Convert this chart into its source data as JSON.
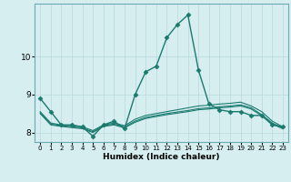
{
  "title": "",
  "xlabel": "Humidex (Indice chaleur)",
  "bg_color": "#d6eef0",
  "grid_color": "#b8d8dc",
  "line_color": "#1a7a6e",
  "xlim": [
    -0.5,
    23.5
  ],
  "ylim": [
    7.75,
    11.4
  ],
  "yticks": [
    8,
    9,
    10
  ],
  "xticks": [
    0,
    1,
    2,
    3,
    4,
    5,
    6,
    7,
    8,
    9,
    10,
    11,
    12,
    13,
    14,
    15,
    16,
    17,
    18,
    19,
    20,
    21,
    22,
    23
  ],
  "series": [
    {
      "x": [
        0,
        1,
        2,
        3,
        4,
        5,
        6,
        7,
        8,
        9,
        10,
        11,
        12,
        13,
        14,
        15,
        16,
        17,
        18,
        19,
        20,
        21,
        22,
        23
      ],
      "y": [
        8.9,
        8.55,
        8.2,
        8.2,
        8.15,
        7.9,
        8.2,
        8.3,
        8.1,
        9.0,
        9.6,
        9.75,
        10.5,
        10.85,
        11.1,
        9.65,
        8.75,
        8.6,
        8.55,
        8.55,
        8.45,
        8.45,
        8.2,
        8.15
      ],
      "marker": "D",
      "markersize": 2.5,
      "linewidth": 1.0
    },
    {
      "x": [
        0,
        1,
        2,
        3,
        4,
        5,
        6,
        7,
        8,
        9,
        10,
        11,
        12,
        13,
        14,
        15,
        16,
        17,
        18,
        19,
        20,
        21,
        22,
        23
      ],
      "y": [
        8.55,
        8.25,
        8.2,
        8.18,
        8.15,
        8.05,
        8.2,
        8.25,
        8.18,
        8.35,
        8.45,
        8.5,
        8.55,
        8.6,
        8.65,
        8.7,
        8.72,
        8.75,
        8.77,
        8.8,
        8.7,
        8.55,
        8.3,
        8.15
      ],
      "marker": null,
      "markersize": 0,
      "linewidth": 0.8
    },
    {
      "x": [
        0,
        1,
        2,
        3,
        4,
        5,
        6,
        7,
        8,
        9,
        10,
        11,
        12,
        13,
        14,
        15,
        16,
        17,
        18,
        19,
        20,
        21,
        22,
        23
      ],
      "y": [
        8.52,
        8.22,
        8.18,
        8.15,
        8.12,
        8.02,
        8.18,
        8.22,
        8.15,
        8.3,
        8.4,
        8.45,
        8.5,
        8.54,
        8.58,
        8.63,
        8.65,
        8.68,
        8.7,
        8.73,
        8.65,
        8.47,
        8.25,
        8.12
      ],
      "marker": null,
      "markersize": 0,
      "linewidth": 0.8
    },
    {
      "x": [
        0,
        1,
        2,
        3,
        4,
        5,
        6,
        7,
        8,
        9,
        10,
        11,
        12,
        13,
        14,
        15,
        16,
        17,
        18,
        19,
        20,
        21,
        22,
        23
      ],
      "y": [
        8.5,
        8.2,
        8.16,
        8.13,
        8.1,
        8.0,
        8.16,
        8.2,
        8.12,
        8.27,
        8.37,
        8.42,
        8.47,
        8.51,
        8.55,
        8.6,
        8.62,
        8.65,
        8.67,
        8.7,
        8.62,
        8.44,
        8.22,
        8.1
      ],
      "marker": null,
      "markersize": 0,
      "linewidth": 0.8
    }
  ]
}
